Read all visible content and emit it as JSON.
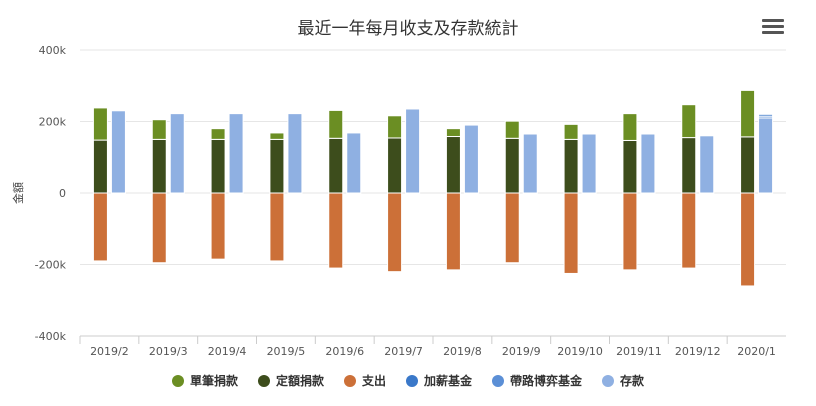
{
  "chart_data": {
    "type": "bar",
    "title": "最近一年每月收支及存款統計",
    "ylabel": "金額",
    "ylim": [
      -400000,
      400000
    ],
    "y_ticks": [
      "-400k",
      "-200k",
      "0",
      "200k",
      "400k"
    ],
    "y_tick_values": [
      -400000,
      -200000,
      0,
      200000,
      400000
    ],
    "grid": true,
    "legend_position": "bottom",
    "categories": [
      "2019/2",
      "2019/3",
      "2019/4",
      "2019/5",
      "2019/6",
      "2019/7",
      "2019/8",
      "2019/9",
      "2019/10",
      "2019/11",
      "2019/12",
      "2020/1"
    ],
    "series": [
      {
        "name": "單筆捐款",
        "color": "#6b8e23",
        "stack": "a",
        "values": [
          90000,
          55000,
          30000,
          18000,
          78000,
          62000,
          22000,
          48000,
          42000,
          75000,
          92000,
          130000
        ]
      },
      {
        "name": "定額捐款",
        "color": "#3d4d1c",
        "stack": "a",
        "values": [
          148000,
          150000,
          150000,
          150000,
          153000,
          154000,
          158000,
          153000,
          150000,
          147000,
          155000,
          157000
        ]
      },
      {
        "name": "支出",
        "color": "#cc7038",
        "stack": "a",
        "values": [
          -190000,
          -195000,
          -185000,
          -190000,
          -210000,
          -220000,
          -215000,
          -195000,
          -225000,
          -215000,
          -210000,
          -260000
        ]
      },
      {
        "name": "加薪基金",
        "color": "#3a78c9",
        "stack": "b",
        "values": [
          0,
          0,
          0,
          0,
          0,
          0,
          0,
          0,
          0,
          0,
          0,
          5000
        ]
      },
      {
        "name": "帶路博弈基金",
        "color": "#5b8fd6",
        "stack": "b",
        "values": [
          0,
          0,
          0,
          0,
          0,
          0,
          0,
          0,
          0,
          0,
          0,
          5000
        ]
      },
      {
        "name": "存款",
        "color": "#8fb0e2",
        "stack": "b",
        "values": [
          230000,
          222000,
          222000,
          222000,
          168000,
          235000,
          190000,
          165000,
          165000,
          165000,
          160000,
          210000
        ]
      }
    ]
  }
}
